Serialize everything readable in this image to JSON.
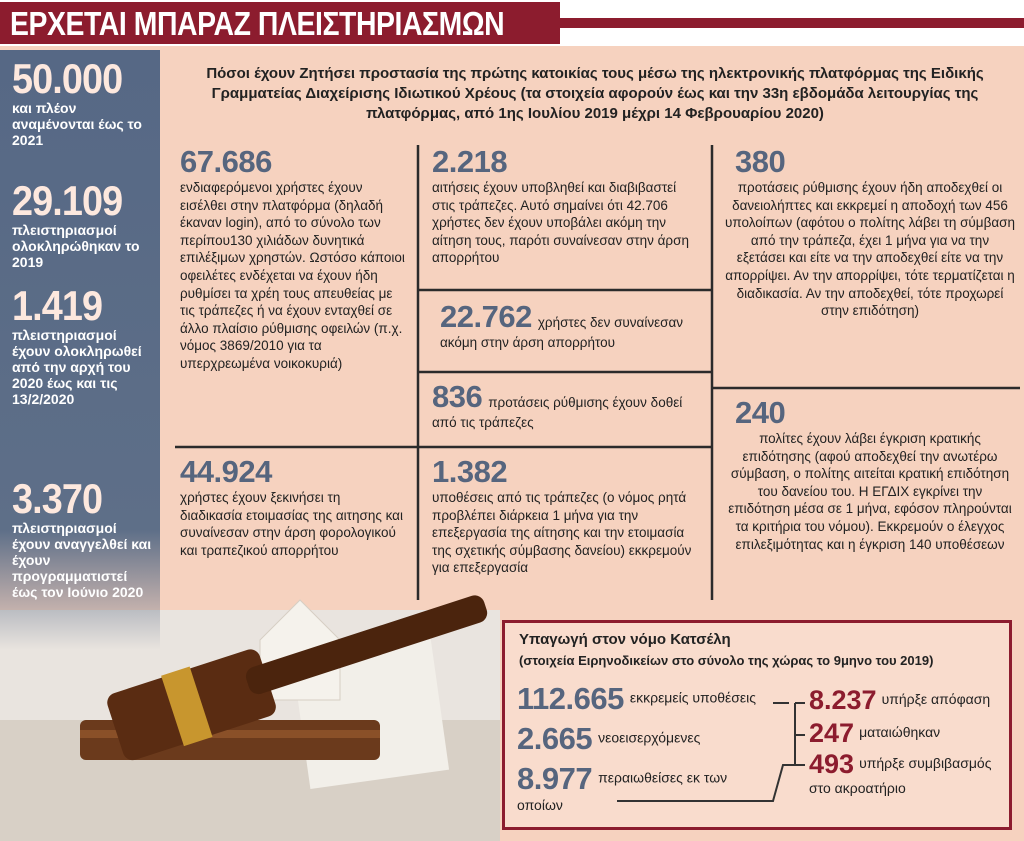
{
  "header": {
    "title": "ΕΡΧΕΤΑΙ ΜΠΑΡΑΖ ΠΛΕΙΣΤΗΡΙΑΣΜΩΝ"
  },
  "sidebar": [
    {
      "number": "50.000",
      "text": "και πλέον αναμένονται έως το 2021"
    },
    {
      "number": "29.109",
      "text": "πλειστηριασμοί ολοκληρώθηκαν το 2019"
    },
    {
      "number": "1.419",
      "text": "πλειστηριασμοί έχουν ολοκληρωθεί από την αρχή του 2020 έως και τις 13/2/2020"
    },
    {
      "number": "3.370",
      "text": "πλειστηριασμοί έχουν αναγγελθεί και έχουν προγραμματιστεί έως τον Ιούνιο 2020"
    }
  ],
  "intro": "Πόσοι έχουν Ζητήσει προστασία της πρώτης κατοικίας τους μέσω της ηλεκτρονικής πλατφόρμας της Ειδικής Γραμματείας Διαχείρισης Ιδιωτικού Χρέους (τα στοιχεία αφορούν έως και την 33η εβδομάδα λειτουργίας της πλατφόρμας, από 1ης Ιουλίου 2019 μέχρι 14 Φεβρουαρίου 2020)",
  "cells": [
    {
      "number": "67.686",
      "text": "ενδιαφερόμενοι χρήστες έχουν εισέλθει στην πλατφόρμα (δηλαδή έκαναν login), από το σύνολο των περίπου130 χιλιάδων δυνητικά επιλέξιμων χρηστών. Ωστόσο κάποιοι οφειλέτες ενδέχεται να έχουν ήδη ρυθμίσει τα χρέη τους απευθείας με τις τράπεζες ή να έχουν ενταχθεί σε άλλο πλαίσιο ρύθμισης οφειλών (π.χ. νόμος 3869/2010 για τα υπερχρεωμένα νοικοκυριά)"
    },
    {
      "number": "2.218",
      "text": "αιτήσεις έχουν υποβληθεί και διαβιβαστεί στις τράπεζες. Αυτό σημαίνει ότι 42.706 χρήστες δεν έχουν υποβάλει ακόμη την αίτηση τους, παρότι συναίνεσαν στην άρση απορρήτου"
    },
    {
      "number": "22.762",
      "text": "χρήστες δεν συναίνεσαν ακόμη στην άρση απορρήτου"
    },
    {
      "number": "836",
      "text": "προτάσεις ρύθμισης έχουν δοθεί από τις τράπεζες"
    },
    {
      "number": "44.924",
      "text": "χρήστες έχουν ξεκινήσει τη διαδικασία ετοιμασίας της αιτησης και συναίνεσαν στην άρση φορολογικού και τραπεζικού απορρήτου"
    },
    {
      "number": "1.382",
      "text": "υποθέσεις από τις τράπεζες (ο νόμος ρητά προβλέπει διάρκεια 1 μήνα για την επεξεργασία της αίτησης και την ετοιμασία της σχετικής σύμβασης δανείου) εκκρεμούν για επεξεργασία"
    },
    {
      "number": "380",
      "text": "προτάσεις ρύθμισης έχουν ήδη αποδεχθεί οι δανειολήπτες και εκκρεμεί η αποδοχή των 456 υπολοίπων (αφότου ο πολίτης λάβει τη σύμβαση από την τράπεζα, έχει 1 μήνα για να την εξετάσει και είτε να την αποδεχθεί είτε να την απορρίψει. Αν την απορρίψει, τότε τερματίζεται η διαδικασία. Αν την αποδεχθεί, τότε προχωρεί στην επιδότηση)"
    },
    {
      "number": "240",
      "text": "πολίτες έχουν λάβει έγκριση κρατικής επιδότησης (αφού αποδεχθεί την ανωτέρω σύμβαση, ο πολίτης αιτείται κρατική επιδότηση του δανείου του. Η ΕΓΔΙΧ εγκρίνει την επιδότηση μέσα σε 1 μήνα, εφόσον πληρούνται τα κριτήρια του νόμου). Εκκρεμούν ο έλεγχος επιλεξιμότητας και η έγκριση 140 υποθέσεων"
    }
  ],
  "box": {
    "title": "Υπαγωγή στον νόμο Κατσέλη",
    "subtitle": "(στοιχεία Ειρηνοδικείων στο σύνολο της χώρας το 9μηνο του 2019)",
    "left": [
      {
        "number": "112.665",
        "text": "εκκρεμείς υποθέσεις"
      },
      {
        "number": "2.665",
        "text": "νεοεισερχόμενες"
      },
      {
        "number": "8.977",
        "text": "περαιωθείσες εκ των οποίων"
      }
    ],
    "right": [
      {
        "number": "8.237",
        "text": "υπήρξε απόφαση"
      },
      {
        "number": "247",
        "text": "ματαιώθηκαν"
      },
      {
        "number": "493",
        "text": "υπήρξε συμβιβασμός στο ακροατήριο"
      }
    ]
  }
}
